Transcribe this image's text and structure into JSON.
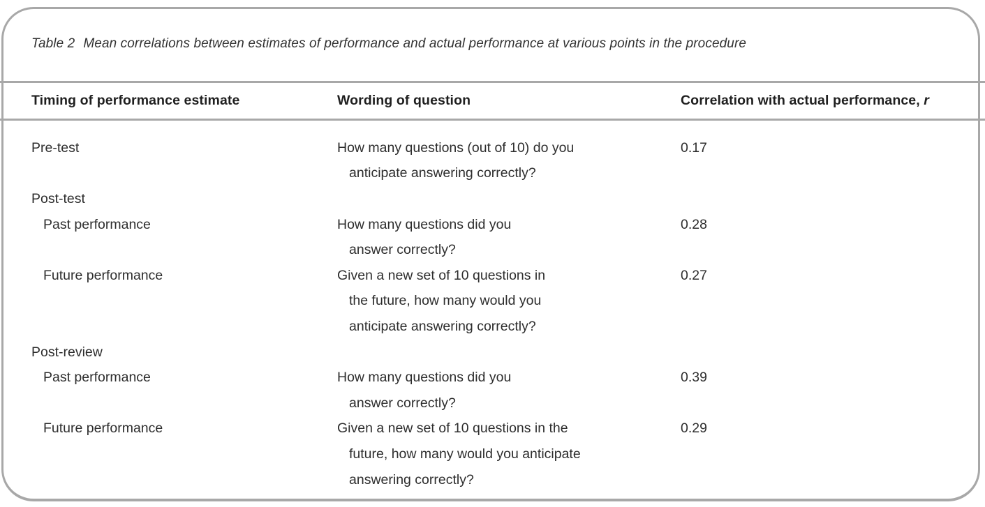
{
  "table": {
    "caption": {
      "label": "Table 2",
      "text": "Mean correlations between estimates of performance and actual performance at various points in the procedure"
    },
    "header": {
      "col1": "Timing of performance estimate",
      "col2": "Wording of question",
      "col3": "Correlation with actual performance,",
      "col3_italic": "r"
    },
    "rows": [
      {
        "timing": "Pre-test",
        "question": "How many questions (out of 10) do you",
        "value": "0.17"
      },
      {
        "timing": "",
        "question": "anticipate answering correctly?",
        "value": ""
      },
      {
        "timing": "Post-test",
        "question": "",
        "value": ""
      },
      {
        "timing": "Past performance",
        "question": "How many questions did you",
        "value": "0.28"
      },
      {
        "timing": "",
        "question": "answer correctly?",
        "value": ""
      },
      {
        "timing": "Future performance",
        "question": "Given a new set of 10 questions in",
        "value": "0.27"
      },
      {
        "timing": "",
        "question": "the future, how many would you",
        "value": ""
      },
      {
        "timing": "",
        "question": "anticipate answering correctly?",
        "value": ""
      },
      {
        "timing": "Post-review",
        "question": "",
        "value": ""
      },
      {
        "timing": "Past performance",
        "question": "How many questions did you",
        "value": "0.39"
      },
      {
        "timing": "",
        "question": "answer correctly?",
        "value": ""
      },
      {
        "timing": "Future performance",
        "question": "Given a new set of 10 questions in the",
        "value": "0.29"
      },
      {
        "timing": "",
        "question": "future, how many would you anticipate",
        "value": ""
      },
      {
        "timing": "",
        "question": "answering correctly?",
        "value": ""
      }
    ]
  },
  "colors": {
    "frame_border": "#a8a8a8",
    "rule": "#a8a8a8",
    "text": "#2d2d2d",
    "header_text": "#1f1f1f"
  }
}
